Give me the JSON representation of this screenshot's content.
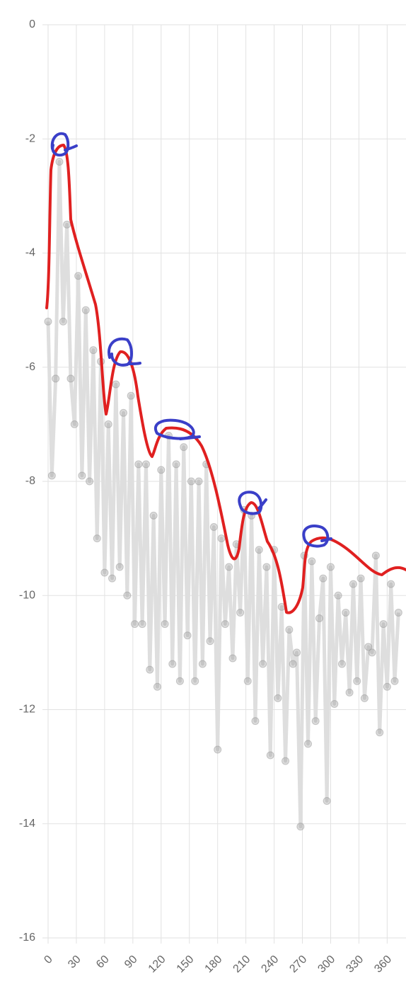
{
  "chart_data": {
    "type": "line",
    "x": [
      0,
      4,
      8,
      12,
      16,
      20,
      24,
      28,
      32,
      36,
      40,
      44,
      48,
      52,
      56,
      60,
      64,
      68,
      72,
      76,
      80,
      84,
      88,
      92,
      96,
      100,
      104,
      108,
      112,
      116,
      120,
      124,
      128,
      132,
      136,
      140,
      144,
      148,
      152,
      156,
      160,
      164,
      168,
      172,
      176,
      180,
      184,
      188,
      192,
      196,
      200,
      204,
      208,
      212,
      216,
      220,
      224,
      228,
      232,
      236,
      240,
      244,
      248,
      252,
      256,
      260,
      264,
      268,
      272,
      276,
      280,
      284,
      288,
      292,
      296,
      300,
      304,
      308,
      312,
      316,
      320,
      324,
      328,
      332,
      336,
      340,
      344,
      348,
      352,
      356,
      360,
      364,
      368,
      372
    ],
    "values": [
      -5.2,
      -7.9,
      -6.2,
      -2.4,
      -5.2,
      -3.5,
      -6.2,
      -7.0,
      -4.4,
      -7.9,
      -5.0,
      -8.0,
      -5.7,
      -9.0,
      -5.9,
      -9.6,
      -7.0,
      -9.7,
      -6.3,
      -9.5,
      -6.8,
      -10.0,
      -6.5,
      -10.5,
      -7.7,
      -10.5,
      -7.7,
      -11.3,
      -8.6,
      -11.6,
      -7.8,
      -10.5,
      -7.2,
      -11.2,
      -7.7,
      -11.5,
      -7.4,
      -10.7,
      -8.0,
      -11.5,
      -8.0,
      -11.2,
      -7.7,
      -10.8,
      -8.8,
      -12.7,
      -9.0,
      -10.5,
      -9.5,
      -11.1,
      -9.1,
      -10.3,
      -8.5,
      -11.5,
      -8.6,
      -12.2,
      -9.2,
      -11.2,
      -9.5,
      -12.8,
      -9.2,
      -11.8,
      -10.2,
      -12.9,
      -10.6,
      -11.2,
      -11.0,
      -14.05,
      -9.3,
      -12.6,
      -9.4,
      -12.2,
      -10.4,
      -9.7,
      -13.6,
      -9.5,
      -11.9,
      -10.0,
      -11.2,
      -10.3,
      -11.7,
      -9.8,
      -11.5,
      -9.7,
      -11.8,
      -10.9,
      -11.0,
      -9.3,
      -12.4,
      -10.5,
      -11.6,
      -9.8,
      -11.5,
      -10.3
    ],
    "color": "#999999",
    "xlim": [
      0,
      380
    ],
    "xticks": [
      0,
      30,
      60,
      90,
      120,
      150,
      180,
      210,
      240,
      270,
      300,
      330,
      360
    ],
    "ylim": [
      -16,
      0
    ],
    "yticks": [
      0,
      -2,
      -4,
      -6,
      -8,
      -10,
      -12,
      -14,
      -16
    ],
    "grid": true
  }
}
